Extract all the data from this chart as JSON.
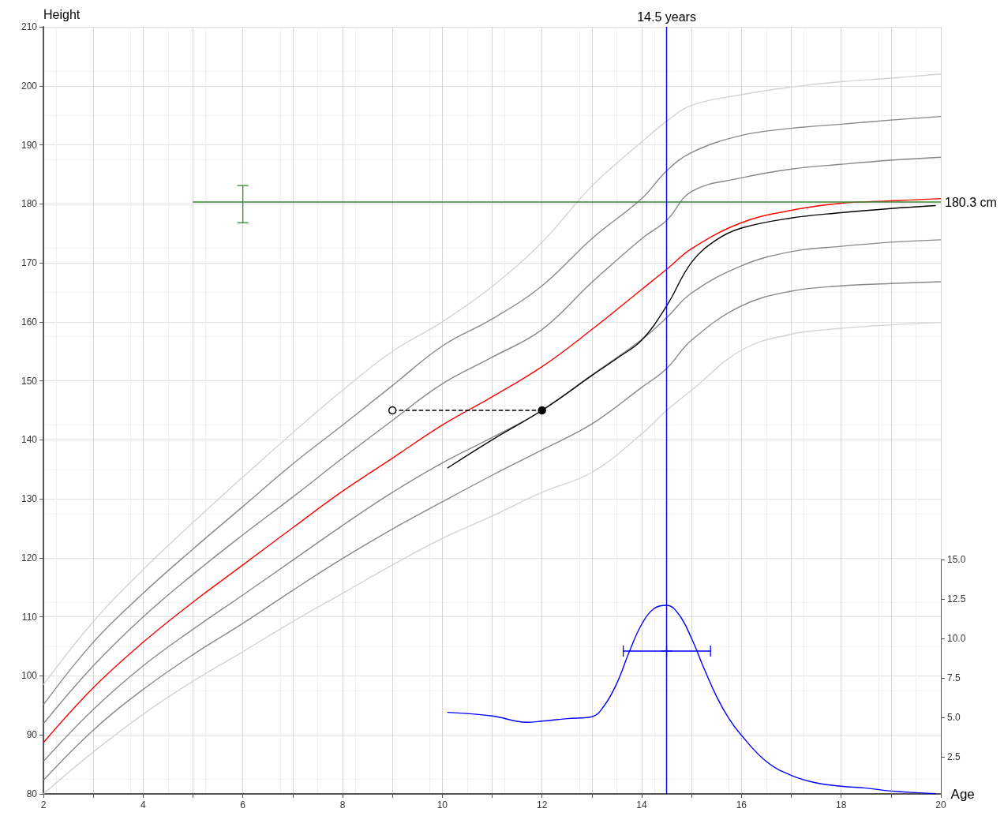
{
  "chart_data": {
    "type": "line",
    "xlabel": "Age",
    "ylabel": "Height",
    "xlim": [
      2,
      20
    ],
    "xticks": [
      2,
      {
        "value": 3,
        "label": null
      },
      4,
      {
        "value": 5,
        "label": null
      },
      6,
      {
        "value": 7,
        "label": null
      },
      8,
      {
        "value": 9,
        "label": null
      },
      10,
      {
        "value": 11,
        "label": null
      },
      12,
      {
        "value": 13,
        "label": null
      },
      14,
      {
        "value": 15,
        "label": null
      },
      16,
      {
        "value": 17,
        "label": null
      },
      18,
      {
        "value": 19,
        "label": null
      },
      20
    ],
    "ylim": [
      80,
      210
    ],
    "yticks": [
      80,
      90,
      100,
      110,
      120,
      130,
      140,
      150,
      160,
      170,
      180,
      190,
      200,
      210
    ],
    "y2lim": [
      0,
      15
    ],
    "y2ticks": [
      {
        "value": 2.5,
        "label": "2.5"
      },
      {
        "value": 5,
        "label": "5.0"
      },
      {
        "value": 7.5,
        "label": "7.5"
      },
      {
        "value": 10,
        "label": "10.0"
      },
      {
        "value": 12.5,
        "label": "12.5"
      },
      {
        "value": 15,
        "label": "15.0"
      }
    ],
    "grid": true,
    "marker": "none",
    "line_style": "solid",
    "series": [
      {
        "color": "#d3d3d3",
        "x": [
          2,
          3,
          4,
          5,
          6,
          7,
          8,
          9,
          10,
          11,
          12,
          13,
          14,
          14.5,
          15,
          16,
          17,
          18,
          19,
          20
        ],
        "values": [
          98.5,
          109.2,
          118,
          126,
          133.7,
          141.2,
          148.4,
          155,
          160,
          166,
          173.5,
          183,
          190.5,
          194,
          196.7,
          198.5,
          199.8,
          200.7,
          201.3,
          202
        ]
      },
      {
        "color": "#888888",
        "x": [
          2,
          3,
          4,
          5,
          6,
          7,
          8,
          9,
          10,
          11,
          12,
          13,
          14,
          14.5,
          15,
          16,
          17,
          18,
          19,
          20
        ],
        "values": [
          95.1,
          105.7,
          114,
          121.5,
          128.7,
          135.9,
          142.5,
          149.2,
          155.9,
          160.5,
          166.1,
          174.1,
          180.9,
          185.6,
          188.7,
          191.6,
          192.8,
          193.5,
          194.2,
          194.8
        ]
      },
      {
        "color": "#888888",
        "x": [
          2,
          3,
          4,
          5,
          6,
          7,
          8,
          9,
          10,
          11,
          12,
          13,
          14,
          14.5,
          15,
          16,
          17,
          18,
          19,
          20
        ],
        "values": [
          91.9,
          101.7,
          110,
          117.2,
          123.9,
          130.3,
          136.9,
          143.3,
          149.5,
          154,
          158.7,
          166.7,
          174.1,
          177.2,
          182.1,
          184.4,
          185.9,
          186.7,
          187.4,
          187.9
        ]
      },
      {
        "color": "#ff0000",
        "x": [
          2,
          3,
          4,
          5,
          6,
          7,
          8,
          9,
          10,
          11,
          12,
          13,
          14,
          14.5,
          15,
          16,
          17,
          18,
          19,
          20
        ],
        "values": [
          88.7,
          98,
          105.7,
          112.5,
          118.8,
          125.1,
          131.3,
          136.9,
          142.5,
          147.3,
          152.4,
          158.7,
          165.5,
          168.9,
          172.4,
          176.8,
          178.9,
          180.1,
          180.5,
          180.9
        ]
      },
      {
        "color": "#888888",
        "x": [
          2,
          3,
          4,
          5,
          6,
          7,
          8,
          9,
          10,
          11,
          12,
          13,
          14,
          14.5,
          15,
          16,
          17,
          18,
          19,
          20
        ],
        "values": [
          85.5,
          94.3,
          101.7,
          107.9,
          113.7,
          119.6,
          125.5,
          131.1,
          136.1,
          140.4,
          145,
          151,
          157,
          160.7,
          164.9,
          169.5,
          171.9,
          172.8,
          173.5,
          173.9
        ]
      },
      {
        "color": "#888888",
        "x": [
          2,
          3,
          4,
          5,
          6,
          7,
          8,
          9,
          10,
          11,
          12,
          13,
          14,
          14.5,
          15,
          16,
          17,
          18,
          19,
          20
        ],
        "values": [
          82.3,
          90.8,
          97.7,
          103.6,
          108.9,
          114.5,
          119.9,
          124.9,
          129.5,
          134,
          138.3,
          142.7,
          148.9,
          152.1,
          156.9,
          162.7,
          165.2,
          166.1,
          166.5,
          166.8
        ]
      },
      {
        "color": "#d3d3d3",
        "x": [
          2,
          3,
          4,
          5,
          6,
          7,
          8,
          9,
          10,
          11,
          12,
          13,
          14,
          14.5,
          15,
          16,
          17,
          18,
          19,
          20
        ],
        "values": [
          80,
          87.1,
          93.5,
          99.1,
          104.1,
          109.2,
          114,
          118.8,
          123.3,
          127.1,
          131.1,
          134.5,
          141,
          145,
          148.4,
          155.2,
          157.9,
          158.9,
          159.5,
          159.9
        ]
      },
      {
        "color": "#000000",
        "x": [
          10.1,
          11,
          12,
          13,
          13.5,
          14,
          14.5,
          15,
          15.5,
          16,
          17,
          18,
          19,
          19.9
        ],
        "values": [
          135.2,
          140,
          145,
          150.9,
          153.8,
          156.9,
          162.7,
          170.1,
          173.9,
          175.9,
          177.6,
          178.5,
          179.2,
          179.7
        ]
      },
      {
        "color": "#000000",
        "line_style": "dashed",
        "marker": "circle",
        "colors": [
          "#ffffff",
          "#000000"
        ],
        "x": [
          9,
          12
        ],
        "values": [
          145,
          145
        ]
      },
      {
        "color": "#2e8b2e",
        "x": [
          5,
          6,
          20
        ],
        "values": [
          180.3,
          180.3,
          180.3
        ],
        "errors": [
          null,
          [
            176.8,
            183.1
          ],
          null
        ]
      },
      {
        "color": "#0000ff",
        "axis": "y2",
        "x": [
          10.1,
          11,
          11.7,
          12,
          12.5,
          13,
          13.25,
          13.5,
          13.75,
          14,
          14.25,
          14.5,
          14.75,
          15,
          15.25,
          15.5,
          15.75,
          16,
          16.5,
          17,
          17.5,
          18,
          18.5,
          19,
          19.9
        ],
        "values": [
          5.32,
          5.09,
          4.69,
          4.76,
          4.92,
          5.04,
          5.75,
          7.15,
          9.15,
          10.9,
          11.9,
          12.1,
          11.5,
          10,
          8.1,
          6.33,
          4.92,
          3.86,
          2.2,
          1.32,
          0.85,
          0.64,
          0.52,
          0.33,
          0.17
        ]
      },
      {
        "type": "scatter",
        "color": "#0000ff",
        "axis": "y2",
        "marker": "cross",
        "x": [
          14.5
        ],
        "values": [
          9.2
        ],
        "xerrors": [
          [
            13.63,
            15.38
          ]
        ]
      }
    ],
    "ref_lines": [
      {
        "axis": "x",
        "value": 14.5,
        "label": "14.5 years",
        "color": "#0000ff"
      }
    ],
    "annotations": [
      {
        "text": "180.3 cm",
        "x": 20,
        "y": 180.3
      }
    ]
  }
}
